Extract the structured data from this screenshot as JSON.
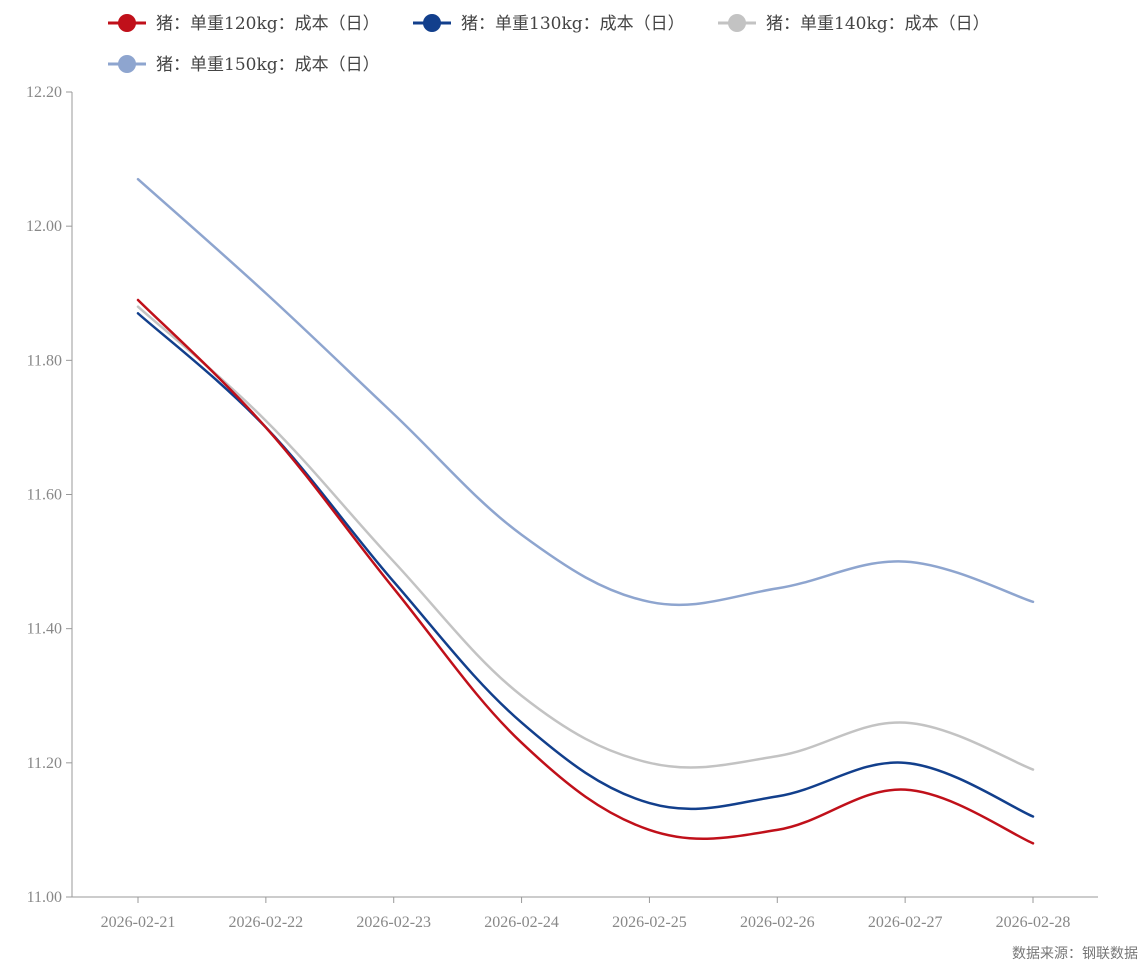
{
  "chart_data": {
    "type": "line",
    "title": "",
    "xlabel": "",
    "ylabel": "",
    "categories": [
      "2026-02-21",
      "2026-02-22",
      "2026-02-23",
      "2026-02-24",
      "2026-02-25",
      "2026-02-26",
      "2026-02-27",
      "2026-02-28"
    ],
    "ylim": [
      11.0,
      12.2
    ],
    "yticks": [
      "11.00",
      "11.20",
      "11.40",
      "11.60",
      "11.80",
      "12.00",
      "12.20"
    ],
    "legend_position": "top-left",
    "grid": false,
    "series": [
      {
        "name": "猪：单重120kg：成本（日）",
        "color": "#c0101a",
        "values": [
          11.89,
          11.7,
          11.46,
          11.23,
          11.1,
          11.1,
          11.16,
          11.08
        ]
      },
      {
        "name": "猪：单重130kg：成本（日）",
        "color": "#123f8c",
        "values": [
          11.87,
          11.7,
          11.47,
          11.26,
          11.14,
          11.15,
          11.2,
          11.12
        ]
      },
      {
        "name": "猪：单重140kg：成本（日）",
        "color": "#c3c3c3",
        "values": [
          11.88,
          11.71,
          11.5,
          11.3,
          11.2,
          11.21,
          11.26,
          11.19
        ]
      },
      {
        "name": "猪：单重150kg：成本（日）",
        "color": "#8ea5cf",
        "values": [
          12.07,
          11.9,
          11.72,
          11.54,
          11.44,
          11.46,
          11.5,
          11.44
        ]
      }
    ],
    "source": "数据来源：钢联数据"
  }
}
